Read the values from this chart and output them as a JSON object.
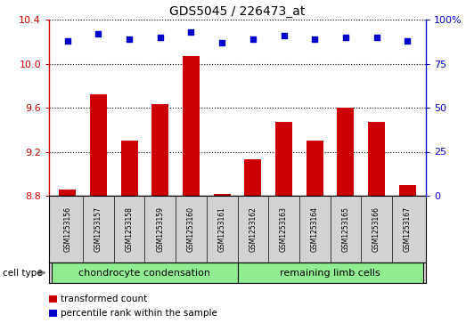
{
  "title": "GDS5045 / 226473_at",
  "samples": [
    "GSM1253156",
    "GSM1253157",
    "GSM1253158",
    "GSM1253159",
    "GSM1253160",
    "GSM1253161",
    "GSM1253162",
    "GSM1253163",
    "GSM1253164",
    "GSM1253165",
    "GSM1253166",
    "GSM1253167"
  ],
  "transformed_counts": [
    8.86,
    9.72,
    9.3,
    9.63,
    10.07,
    8.82,
    9.13,
    9.47,
    9.3,
    9.6,
    9.47,
    8.9
  ],
  "percentile_ranks": [
    88,
    92,
    89,
    90,
    93,
    87,
    89,
    91,
    89,
    90,
    90,
    88
  ],
  "group_labels": [
    "chondrocyte condensation",
    "remaining limb cells"
  ],
  "group_split": 6,
  "group_color": "#90EE90",
  "bar_color": "#CC0000",
  "dot_color": "#0000CC",
  "ylim_left": [
    8.8,
    10.4
  ],
  "yticks_left": [
    8.8,
    9.2,
    9.6,
    10.0,
    10.4
  ],
  "ylim_right": [
    0,
    100
  ],
  "yticks_right": [
    0,
    25,
    50,
    75,
    100
  ],
  "yticklabels_right": [
    "0",
    "25",
    "50",
    "75",
    "100%"
  ],
  "bar_width": 0.55,
  "sample_bg": "#d3d3d3",
  "plot_bg": "#ffffff",
  "legend_red_label": "transformed count",
  "legend_blue_label": "percentile rank within the sample",
  "cell_type_label": "cell type"
}
